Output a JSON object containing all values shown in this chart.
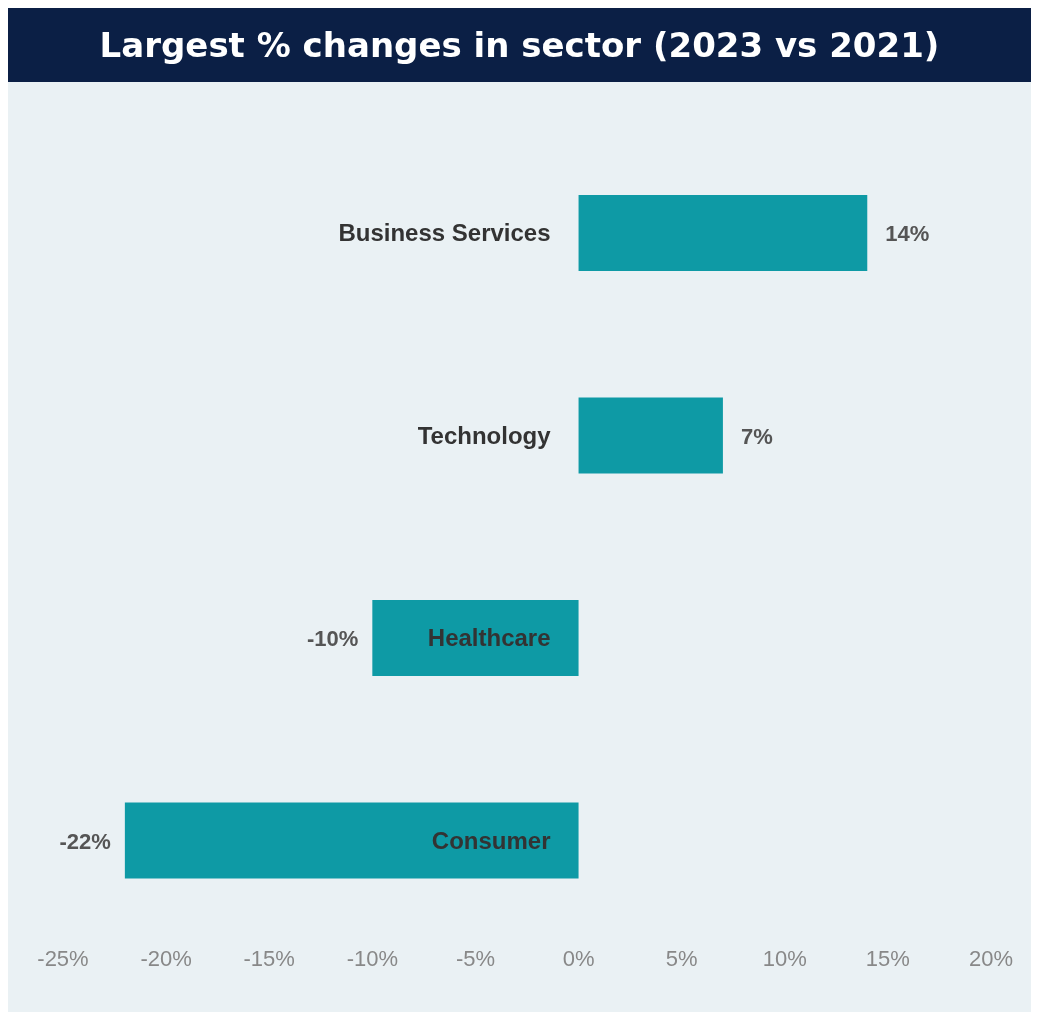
{
  "chart_data": {
    "type": "bar",
    "orientation": "horizontal",
    "title": "Largest % changes in sector (2023 vs 2021)",
    "categories": [
      "Business Services",
      "Technology",
      "Healthcare",
      "Consumer"
    ],
    "values": [
      14,
      7,
      -10,
      -22
    ],
    "value_labels": [
      "14%",
      "7%",
      "-10%",
      "-22%"
    ],
    "color": "#0e9aa5",
    "xlim": [
      -25,
      20
    ],
    "xticks": [
      {
        "value": -25,
        "label": "-25%"
      },
      {
        "value": -20,
        "label": "-20%"
      },
      {
        "value": -15,
        "label": "-15%"
      },
      {
        "value": -10,
        "label": "-10%"
      },
      {
        "value": -5,
        "label": "-5%"
      },
      {
        "value": 0,
        "label": "0%"
      },
      {
        "value": 5,
        "label": "5%"
      },
      {
        "value": 10,
        "label": "10%"
      },
      {
        "value": 15,
        "label": "15%"
      },
      {
        "value": 20,
        "label": "20%"
      }
    ],
    "grid": false,
    "legend": false
  }
}
